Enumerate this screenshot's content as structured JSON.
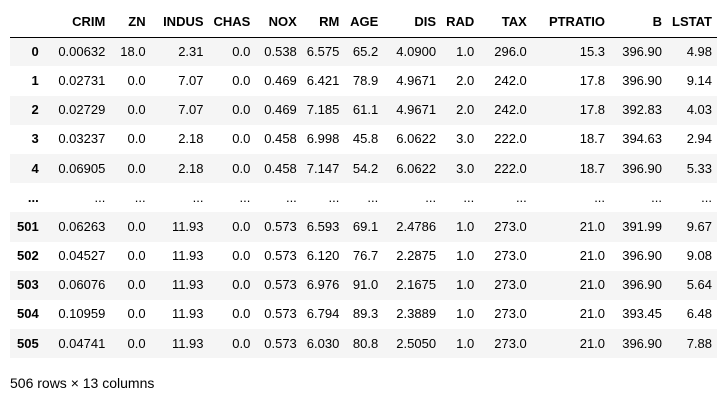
{
  "table": {
    "index_header": "",
    "columns": [
      "CRIM",
      "ZN",
      "INDUS",
      "CHAS",
      "NOX",
      "RM",
      "AGE",
      "DIS",
      "RAD",
      "TAX",
      "PTRATIO",
      "B",
      "LSTAT"
    ],
    "rows": [
      {
        "index": "0",
        "cells": [
          "0.00632",
          "18.0",
          "2.31",
          "0.0",
          "0.538",
          "6.575",
          "65.2",
          "4.0900",
          "1.0",
          "296.0",
          "15.3",
          "396.90",
          "4.98"
        ]
      },
      {
        "index": "1",
        "cells": [
          "0.02731",
          "0.0",
          "7.07",
          "0.0",
          "0.469",
          "6.421",
          "78.9",
          "4.9671",
          "2.0",
          "242.0",
          "17.8",
          "396.90",
          "9.14"
        ]
      },
      {
        "index": "2",
        "cells": [
          "0.02729",
          "0.0",
          "7.07",
          "0.0",
          "0.469",
          "7.185",
          "61.1",
          "4.9671",
          "2.0",
          "242.0",
          "17.8",
          "392.83",
          "4.03"
        ]
      },
      {
        "index": "3",
        "cells": [
          "0.03237",
          "0.0",
          "2.18",
          "0.0",
          "0.458",
          "6.998",
          "45.8",
          "6.0622",
          "3.0",
          "222.0",
          "18.7",
          "394.63",
          "2.94"
        ]
      },
      {
        "index": "4",
        "cells": [
          "0.06905",
          "0.0",
          "2.18",
          "0.0",
          "0.458",
          "7.147",
          "54.2",
          "6.0622",
          "3.0",
          "222.0",
          "18.7",
          "396.90",
          "5.33"
        ]
      },
      {
        "index": "...",
        "cells": [
          "...",
          "...",
          "...",
          "...",
          "...",
          "...",
          "...",
          "...",
          "...",
          "...",
          "...",
          "...",
          "..."
        ]
      },
      {
        "index": "501",
        "cells": [
          "0.06263",
          "0.0",
          "11.93",
          "0.0",
          "0.573",
          "6.593",
          "69.1",
          "2.4786",
          "1.0",
          "273.0",
          "21.0",
          "391.99",
          "9.67"
        ]
      },
      {
        "index": "502",
        "cells": [
          "0.04527",
          "0.0",
          "11.93",
          "0.0",
          "0.573",
          "6.120",
          "76.7",
          "2.2875",
          "1.0",
          "273.0",
          "21.0",
          "396.90",
          "9.08"
        ]
      },
      {
        "index": "503",
        "cells": [
          "0.06076",
          "0.0",
          "11.93",
          "0.0",
          "0.573",
          "6.976",
          "91.0",
          "2.1675",
          "1.0",
          "273.0",
          "21.0",
          "396.90",
          "5.64"
        ]
      },
      {
        "index": "504",
        "cells": [
          "0.10959",
          "0.0",
          "11.93",
          "0.0",
          "0.573",
          "6.794",
          "89.3",
          "2.3889",
          "1.0",
          "273.0",
          "21.0",
          "393.45",
          "6.48"
        ]
      },
      {
        "index": "505",
        "cells": [
          "0.04741",
          "0.0",
          "11.93",
          "0.0",
          "0.573",
          "6.030",
          "80.8",
          "2.5050",
          "1.0",
          "273.0",
          "21.0",
          "396.90",
          "7.88"
        ]
      }
    ]
  },
  "shape_text": "506 rows × 13 columns",
  "colors": {
    "stripe": "#f5f5f5",
    "background": "#ffffff",
    "text": "#000000"
  }
}
